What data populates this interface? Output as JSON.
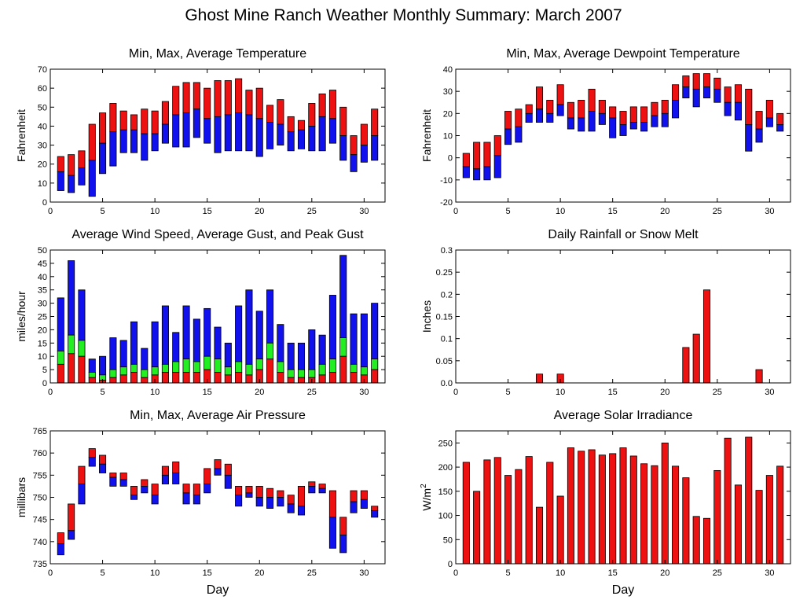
{
  "page": {
    "title": "Ghost Mine Ranch Weather Monthly Summary: March 2007"
  },
  "colors": {
    "red": "#ee1111",
    "blue": "#1111ee",
    "green": "#22ee22",
    "frame": "#000000"
  },
  "chart_data": [
    {
      "id": "temp",
      "type": "bar",
      "title": "Min, Max, Average Temperature",
      "xlabel": "",
      "ylabel": "Fahrenheit",
      "xlim": [
        0,
        32
      ],
      "ylim": [
        0,
        70
      ],
      "xticks": [
        0,
        5,
        10,
        15,
        20,
        25,
        30
      ],
      "yticks": [
        0,
        10,
        20,
        30,
        40,
        50,
        60,
        70
      ],
      "style": "range",
      "x": [
        1,
        2,
        3,
        4,
        5,
        6,
        7,
        8,
        9,
        10,
        11,
        12,
        13,
        14,
        15,
        16,
        17,
        18,
        19,
        20,
        21,
        22,
        23,
        24,
        25,
        26,
        27,
        28,
        29,
        30,
        31
      ],
      "min": [
        6,
        5,
        9,
        3,
        15,
        19,
        26,
        26,
        22,
        27,
        31,
        29,
        29,
        34,
        31,
        26,
        27,
        27,
        27,
        24,
        28,
        30,
        27,
        28,
        27,
        27,
        31,
        22,
        16,
        21,
        22
      ],
      "avg": [
        16,
        14,
        18,
        22,
        31,
        37,
        38,
        38,
        36,
        36,
        41,
        46,
        47,
        49,
        44,
        45,
        46,
        47,
        46,
        44,
        42,
        41,
        37,
        38,
        40,
        45,
        44,
        35,
        25,
        30,
        35
      ],
      "max": [
        24,
        25,
        27,
        41,
        47,
        52,
        48,
        46,
        49,
        48,
        53,
        61,
        63,
        63,
        60,
        64,
        64,
        65,
        59,
        60,
        51,
        54,
        45,
        43,
        52,
        57,
        59,
        50,
        35,
        41,
        49
      ],
      "series": [
        {
          "name": "Max",
          "color": "#ee1111"
        },
        {
          "name": "Min",
          "color": "#1111ee"
        }
      ]
    },
    {
      "id": "dew",
      "type": "bar",
      "title": "Min, Max, Average Dewpoint Temperature",
      "xlabel": "",
      "ylabel": "Fahrenheit",
      "xlim": [
        0,
        32
      ],
      "ylim": [
        -20,
        40
      ],
      "xticks": [
        0,
        5,
        10,
        15,
        20,
        25,
        30
      ],
      "yticks": [
        -20,
        -10,
        0,
        10,
        20,
        30,
        40
      ],
      "style": "range",
      "x": [
        1,
        2,
        3,
        4,
        5,
        6,
        7,
        8,
        9,
        10,
        11,
        12,
        13,
        14,
        15,
        16,
        17,
        18,
        19,
        20,
        21,
        22,
        23,
        24,
        25,
        26,
        27,
        28,
        29,
        30,
        31
      ],
      "min": [
        -9,
        -10,
        -10,
        -9,
        6,
        7,
        16,
        16,
        16,
        19,
        13,
        12,
        12,
        15,
        9,
        10,
        13,
        12,
        14,
        14,
        18,
        27,
        23,
        27,
        25,
        19,
        17,
        3,
        7,
        14,
        12
      ],
      "avg": [
        -4,
        -5,
        -4,
        1,
        13,
        14,
        20,
        22,
        20,
        24,
        18,
        18,
        21,
        20,
        18,
        15,
        16,
        16,
        19,
        20,
        26,
        32,
        31,
        32,
        31,
        25,
        25,
        15,
        13,
        18,
        15
      ],
      "max": [
        2,
        7,
        7,
        10,
        21,
        22,
        24,
        32,
        26,
        33,
        25,
        26,
        31,
        26,
        23,
        21,
        23,
        23,
        25,
        26,
        33,
        37,
        38,
        38,
        36,
        32,
        33,
        31,
        21,
        26,
        20
      ],
      "series": [
        {
          "name": "Max",
          "color": "#ee1111"
        },
        {
          "name": "Min",
          "color": "#1111ee"
        }
      ]
    },
    {
      "id": "wind",
      "type": "bar",
      "title": "Average Wind Speed, Average Gust, and Peak Gust",
      "xlabel": "",
      "ylabel": "miles/hour",
      "xlim": [
        0,
        32
      ],
      "ylim": [
        0,
        50
      ],
      "xticks": [
        0,
        5,
        10,
        15,
        20,
        25,
        30
      ],
      "yticks": [
        0,
        5,
        10,
        15,
        20,
        25,
        30,
        35,
        40,
        45,
        50
      ],
      "style": "stack",
      "x": [
        1,
        2,
        3,
        4,
        5,
        6,
        7,
        8,
        9,
        10,
        11,
        12,
        13,
        14,
        15,
        16,
        17,
        18,
        19,
        20,
        21,
        22,
        23,
        24,
        25,
        26,
        27,
        28,
        29,
        30,
        31
      ],
      "avg_speed": [
        7,
        11,
        10,
        2,
        1,
        2,
        3,
        4,
        2,
        3,
        4,
        4,
        4,
        4,
        5,
        4,
        3,
        4,
        3,
        5,
        9,
        4,
        2,
        2,
        2,
        3,
        4,
        10,
        4,
        3,
        5
      ],
      "avg_gust": [
        12,
        18,
        16,
        4,
        3,
        5,
        6,
        7,
        5,
        6,
        7,
        8,
        9,
        8,
        10,
        9,
        6,
        8,
        7,
        9,
        15,
        8,
        5,
        5,
        5,
        7,
        9,
        17,
        7,
        6,
        9
      ],
      "peak_gust": [
        32,
        46,
        35,
        9,
        10,
        17,
        16,
        23,
        13,
        23,
        29,
        19,
        29,
        24,
        28,
        21,
        15,
        29,
        35,
        27,
        35,
        22,
        15,
        15,
        20,
        18,
        33,
        48,
        26,
        26,
        30
      ],
      "series": [
        {
          "name": "Average Wind Speed",
          "color": "#ee1111"
        },
        {
          "name": "Average Gust",
          "color": "#22ee22"
        },
        {
          "name": "Peak Gust",
          "color": "#1111ee"
        }
      ]
    },
    {
      "id": "rain",
      "type": "bar",
      "title": "Daily Rainfall or Snow Melt",
      "xlabel": "",
      "ylabel": "Inches",
      "xlim": [
        0,
        32
      ],
      "ylim": [
        0,
        0.3
      ],
      "xticks": [
        0,
        5,
        10,
        15,
        20,
        25,
        30
      ],
      "yticks": [
        0,
        0.05,
        0.1,
        0.15,
        0.2,
        0.25,
        0.3
      ],
      "ytick_labels": [
        "0.0",
        "0.05",
        "0.1",
        "0.15",
        "0.2",
        "0.25",
        "0.3"
      ],
      "style": "simple",
      "x": [
        1,
        2,
        3,
        4,
        5,
        6,
        7,
        8,
        9,
        10,
        11,
        12,
        13,
        14,
        15,
        16,
        17,
        18,
        19,
        20,
        21,
        22,
        23,
        24,
        25,
        26,
        27,
        28,
        29,
        30,
        31
      ],
      "values": [
        0,
        0,
        0,
        0,
        0,
        0,
        0,
        0.02,
        0,
        0.02,
        0,
        0,
        0,
        0,
        0,
        0,
        0,
        0,
        0,
        0,
        0,
        0.08,
        0.11,
        0.21,
        0,
        0,
        0,
        0,
        0.03,
        0,
        0
      ],
      "series": [
        {
          "name": "Rainfall",
          "color": "#ee1111"
        }
      ]
    },
    {
      "id": "press",
      "type": "bar",
      "title": "Min, Max, Average Air Pressure",
      "xlabel": "Day",
      "ylabel": "millibars",
      "xlim": [
        0,
        32
      ],
      "ylim": [
        735,
        765
      ],
      "xticks": [
        0,
        5,
        10,
        15,
        20,
        25,
        30
      ],
      "yticks": [
        735,
        740,
        745,
        750,
        755,
        760,
        765
      ],
      "style": "range",
      "x": [
        1,
        2,
        3,
        4,
        5,
        6,
        7,
        8,
        9,
        10,
        11,
        12,
        13,
        14,
        15,
        16,
        17,
        18,
        19,
        20,
        21,
        22,
        23,
        24,
        25,
        26,
        27,
        28,
        29,
        30,
        31
      ],
      "min": [
        737,
        740.5,
        748.5,
        757,
        755.5,
        752.5,
        752.5,
        749.5,
        751,
        748.5,
        753,
        753,
        748.5,
        748.5,
        751,
        755,
        752,
        748,
        750,
        748,
        747.5,
        748,
        746.5,
        746,
        751,
        751,
        738.5,
        737.5,
        746.5,
        747.5,
        745.5
      ],
      "avg": [
        739.5,
        742.5,
        753,
        759,
        757.5,
        754.5,
        754,
        750.5,
        752.5,
        750.5,
        755,
        755.5,
        751,
        750.5,
        753,
        756.5,
        755,
        750.5,
        751,
        750,
        750,
        750,
        748.5,
        748,
        752.5,
        752,
        745.5,
        741.5,
        749,
        749.5,
        747
      ],
      "max": [
        742,
        748.5,
        757,
        761,
        759.5,
        755.5,
        755.5,
        752.5,
        754,
        753,
        757,
        758,
        753,
        753,
        756.5,
        758.5,
        757.5,
        752.5,
        752.5,
        752.5,
        752,
        751.5,
        750.5,
        752.5,
        753.5,
        753,
        751.5,
        745.5,
        751.5,
        751.5,
        748
      ],
      "series": [
        {
          "name": "Max",
          "color": "#ee1111"
        },
        {
          "name": "Min",
          "color": "#1111ee"
        }
      ]
    },
    {
      "id": "solar",
      "type": "bar",
      "title": "Average Solar Irradiance",
      "xlabel": "Day",
      "ylabel": "W/m",
      "ylabel_sup": "2",
      "xlim": [
        0,
        32
      ],
      "ylim": [
        0,
        275
      ],
      "xticks": [
        0,
        5,
        10,
        15,
        20,
        25,
        30
      ],
      "yticks": [
        0,
        50,
        100,
        150,
        200,
        250
      ],
      "style": "simple",
      "x": [
        1,
        2,
        3,
        4,
        5,
        6,
        7,
        8,
        9,
        10,
        11,
        12,
        13,
        14,
        15,
        16,
        17,
        18,
        19,
        20,
        21,
        22,
        23,
        24,
        25,
        26,
        27,
        28,
        29,
        30,
        31
      ],
      "values": [
        210,
        150,
        215,
        220,
        183,
        195,
        222,
        117,
        210,
        140,
        240,
        233,
        236,
        225,
        228,
        240,
        223,
        207,
        203,
        250,
        202,
        178,
        98,
        94,
        193,
        260,
        163,
        262,
        152,
        183,
        202
      ],
      "series": [
        {
          "name": "Solar Irradiance",
          "color": "#ee1111"
        }
      ]
    }
  ]
}
